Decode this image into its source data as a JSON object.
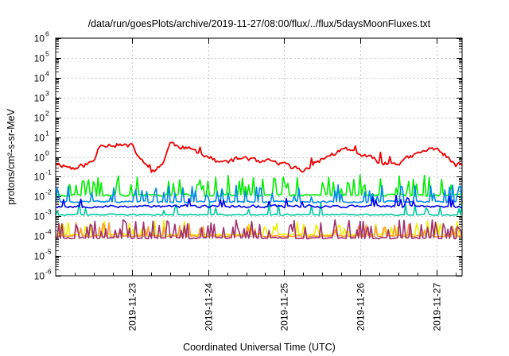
{
  "chart_data": {
    "type": "line",
    "title": "/data/run/goesPlots/archive/2019-11-27/08:00/flux/../flux/5daysMoonFluxes.txt",
    "xlabel": "Coordinated Universal Time (UTC)",
    "ylabel": "protons/cm²-s-sr-MeV",
    "x_range": [
      "2019-11-22T00:00",
      "2019-11-27T08:00"
    ],
    "ylim": [
      1e-06,
      1000000.0
    ],
    "yscale": "log",
    "grid": true,
    "x_ticks": [
      "2019-11-23",
      "2019-11-24",
      "2019-11-25",
      "2019-11-26",
      "2019-11-27"
    ],
    "y_ticks": [
      {
        "base": "10",
        "exp": "6"
      },
      {
        "base": "10",
        "exp": "5"
      },
      {
        "base": "10",
        "exp": "4"
      },
      {
        "base": "10",
        "exp": "3"
      },
      {
        "base": "10",
        "exp": "2"
      },
      {
        "base": "10",
        "exp": "1"
      },
      {
        "base": "10",
        "exp": "0"
      },
      {
        "base": "10",
        "exp": "-1"
      },
      {
        "base": "10",
        "exp": "-2"
      },
      {
        "base": "10",
        "exp": "-3"
      },
      {
        "base": "10",
        "exp": "-4"
      },
      {
        "base": "10",
        "exp": "-5"
      },
      {
        "base": "10",
        "exp": "-6"
      }
    ],
    "series": [
      {
        "color": "#ee0000",
        "baseline": 0.9,
        "noise_decades": 0.18,
        "spike_prob": 0.02,
        "spike_decades": 0.6,
        "seed": 11,
        "trend": [
          [
            "2019-11-22T00:00",
            0.5
          ],
          [
            "2019-11-22T06:00",
            0.25
          ],
          [
            "2019-11-22T12:00",
            0.6
          ],
          [
            "2019-11-22T14:00",
            4.5
          ],
          [
            "2019-11-22T20:00",
            4.0
          ],
          [
            "2019-11-23T00:00",
            3.5
          ],
          [
            "2019-11-23T04:00",
            0.4
          ],
          [
            "2019-11-23T07:00",
            0.18
          ],
          [
            "2019-11-23T10:00",
            0.6
          ],
          [
            "2019-11-23T12:00",
            5.0
          ],
          [
            "2019-11-23T20:00",
            2.0
          ],
          [
            "2019-11-24T00:00",
            1.0
          ],
          [
            "2019-11-24T04:00",
            0.5
          ],
          [
            "2019-11-24T08:00",
            0.7
          ],
          [
            "2019-11-24T12:00",
            1.0
          ],
          [
            "2019-11-24T16:00",
            0.5
          ],
          [
            "2019-11-24T20:00",
            0.6
          ],
          [
            "2019-11-25T00:00",
            0.4
          ],
          [
            "2019-11-25T06:00",
            0.2
          ],
          [
            "2019-11-25T12:00",
            0.8
          ],
          [
            "2019-11-25T19:00",
            2.5
          ],
          [
            "2019-11-26T02:00",
            1.0
          ],
          [
            "2019-11-26T08:00",
            0.45
          ],
          [
            "2019-11-26T12:00",
            0.5
          ],
          [
            "2019-11-26T20:00",
            2.0
          ],
          [
            "2019-11-27T00:00",
            3.0
          ],
          [
            "2019-11-27T04:00",
            0.8
          ],
          [
            "2019-11-27T06:00",
            0.35
          ],
          [
            "2019-11-27T08:00",
            0.45
          ]
        ]
      },
      {
        "color": "#00ee00",
        "baseline": 0.012,
        "noise_decades": 0.08,
        "spike_prob": 0.22,
        "spike_decades": 0.7,
        "seed": 23
      },
      {
        "color": "#00c8a0",
        "baseline": 0.0012,
        "noise_decades": 0.05,
        "spike_prob": 0.06,
        "spike_decades": 0.5,
        "seed": 37
      },
      {
        "color": "#0088ee",
        "baseline": 0.0055,
        "noise_decades": 0.07,
        "spike_prob": 0.2,
        "spike_decades": 0.6,
        "seed": 41
      },
      {
        "color": "#0000ee",
        "baseline": 0.0032,
        "noise_decades": 0.1,
        "spike_prob": 0.08,
        "spike_decades": 0.4,
        "seed": 53
      },
      {
        "color": "#eeee00",
        "baseline": 0.00012,
        "noise_decades": 0.06,
        "spike_prob": 0.12,
        "spike_decades": 0.5,
        "seed": 67
      },
      {
        "color": "#ff9933",
        "baseline": 0.0001,
        "noise_decades": 0.06,
        "spike_prob": 0.15,
        "spike_decades": 0.5,
        "seed": 71
      },
      {
        "color": "#a03070",
        "baseline": 8e-05,
        "noise_decades": 0.05,
        "spike_prob": 0.26,
        "spike_decades": 0.65,
        "seed": 89
      }
    ]
  }
}
